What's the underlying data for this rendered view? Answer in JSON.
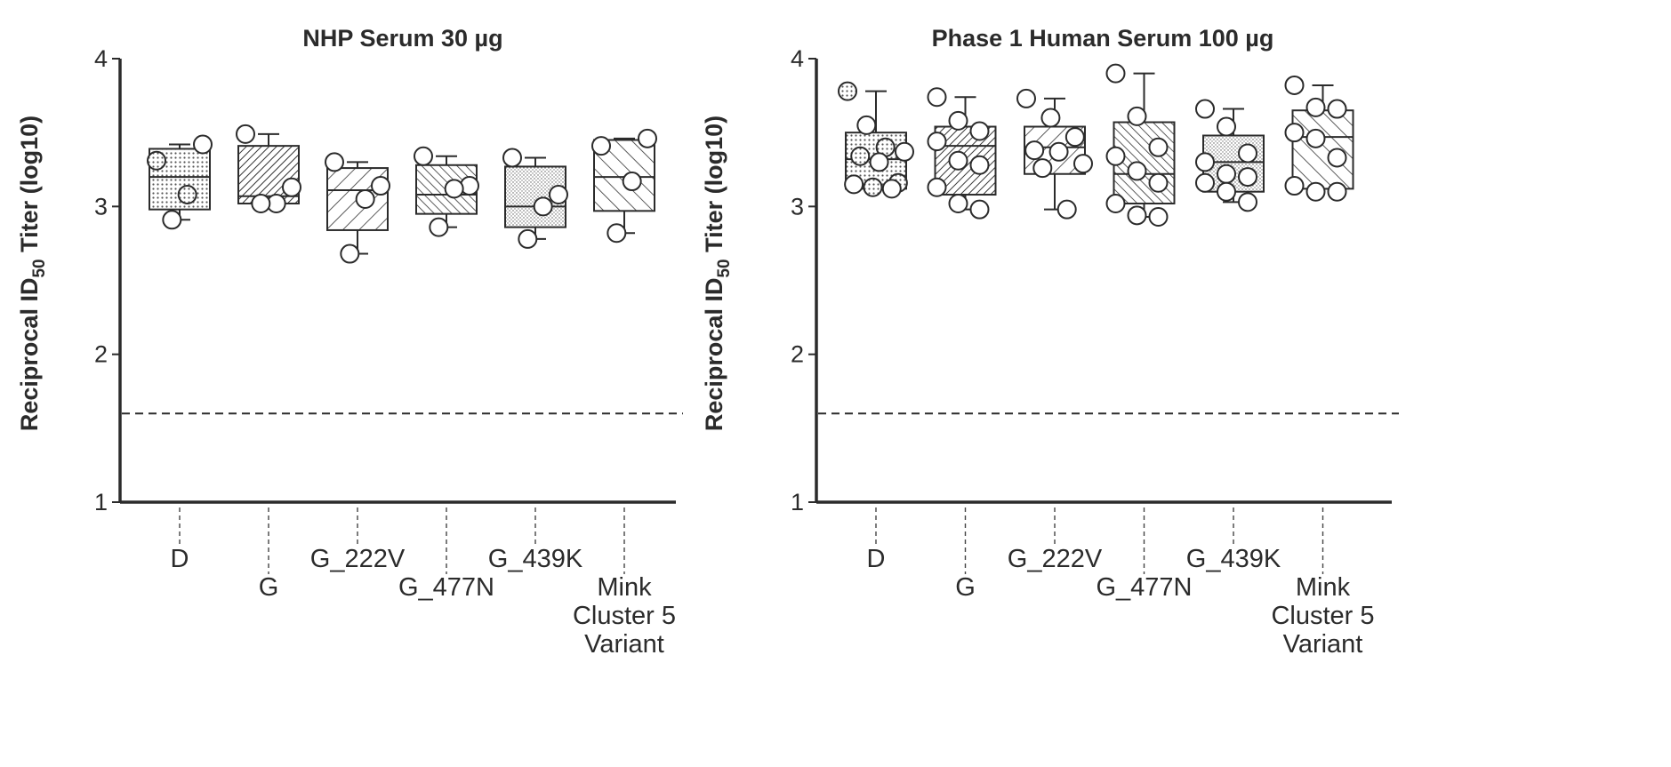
{
  "chart_data": [
    {
      "type": "box",
      "title": "NHP Serum 30 µg",
      "ylabel": "Reciprocal ID50 Titer (log10)",
      "ylim": [
        1,
        4
      ],
      "yticks": [
        1,
        2,
        3,
        4
      ],
      "limit_of_detection": 1.6,
      "categories": [
        "D",
        "G",
        "G_222V",
        "G_477N",
        "G_439K",
        "Mink Cluster 5 Variant"
      ],
      "boxes": [
        {
          "category": "D",
          "q1": 2.98,
          "median": 3.2,
          "q3": 3.39,
          "whisker_low": 2.91,
          "whisker_high": 3.42,
          "points": [
            3.31,
            3.42,
            3.08,
            2.91
          ],
          "fill": "dots"
        },
        {
          "category": "G",
          "q1": 3.02,
          "median": 3.07,
          "q3": 3.41,
          "whisker_low": 3.02,
          "whisker_high": 3.49,
          "points": [
            3.49,
            3.13,
            3.02,
            3.02
          ],
          "fill": "hatch-dense-back"
        },
        {
          "category": "G_222V",
          "q1": 2.84,
          "median": 3.11,
          "q3": 3.26,
          "whisker_low": 2.68,
          "whisker_high": 3.3,
          "points": [
            3.3,
            3.14,
            3.05,
            2.68
          ],
          "fill": "hatch-wide-back"
        },
        {
          "category": "G_477N",
          "q1": 2.95,
          "median": 3.08,
          "q3": 3.28,
          "whisker_low": 2.86,
          "whisker_high": 3.34,
          "points": [
            3.34,
            3.14,
            3.12,
            2.86
          ],
          "fill": "hatch-dense-fwd"
        },
        {
          "category": "G_439K",
          "q1": 2.86,
          "median": 3.0,
          "q3": 3.27,
          "whisker_low": 2.78,
          "whisker_high": 3.33,
          "points": [
            3.33,
            3.08,
            3.0,
            2.78
          ],
          "fill": "dots-fine"
        },
        {
          "category": "Mink Cluster 5 Variant",
          "q1": 2.97,
          "median": 3.2,
          "q3": 3.45,
          "whisker_low": 2.82,
          "whisker_high": 3.46,
          "points": [
            3.41,
            3.46,
            3.17,
            2.82
          ],
          "fill": "hatch-wide-fwd"
        }
      ]
    },
    {
      "type": "box",
      "title": "Phase 1 Human Serum 100 µg",
      "ylabel": "Reciprocal ID50 Titer (log10)",
      "ylim": [
        1,
        4
      ],
      "yticks": [
        1,
        2,
        3,
        4
      ],
      "limit_of_detection": 1.6,
      "categories": [
        "D",
        "G",
        "G_222V",
        "G_477N",
        "G_439K",
        "Mink Cluster 5 Variant"
      ],
      "boxes": [
        {
          "category": "D",
          "q1": 3.12,
          "median": 3.32,
          "q3": 3.5,
          "whisker_low": 3.12,
          "whisker_high": 3.78,
          "points": [
            3.78,
            3.55,
            3.4,
            3.37,
            3.34,
            3.3,
            3.16,
            3.15,
            3.13,
            3.12
          ],
          "fill": "dots"
        },
        {
          "category": "G",
          "q1": 3.08,
          "median": 3.41,
          "q3": 3.54,
          "whisker_low": 2.98,
          "whisker_high": 3.74,
          "points": [
            3.74,
            3.58,
            3.51,
            3.44,
            3.31,
            3.28,
            3.13,
            3.02,
            2.98
          ],
          "fill": "hatch-dense-back"
        },
        {
          "category": "G_222V",
          "q1": 3.22,
          "median": 3.4,
          "q3": 3.54,
          "whisker_low": 2.98,
          "whisker_high": 3.73,
          "points": [
            3.73,
            3.6,
            3.47,
            3.38,
            3.37,
            3.29,
            3.26,
            2.98
          ],
          "fill": "hatch-wide-back"
        },
        {
          "category": "G_477N",
          "q1": 3.02,
          "median": 3.22,
          "q3": 3.57,
          "whisker_low": 2.93,
          "whisker_high": 3.9,
          "points": [
            3.9,
            3.61,
            3.4,
            3.34,
            3.24,
            3.16,
            3.02,
            2.94,
            2.93
          ],
          "fill": "hatch-dense-fwd"
        },
        {
          "category": "G_439K",
          "q1": 3.1,
          "median": 3.3,
          "q3": 3.48,
          "whisker_low": 3.03,
          "whisker_high": 3.66,
          "points": [
            3.66,
            3.54,
            3.36,
            3.3,
            3.22,
            3.2,
            3.16,
            3.1,
            3.03
          ],
          "fill": "dots-fine"
        },
        {
          "category": "Mink Cluster 5 Variant",
          "q1": 3.12,
          "median": 3.47,
          "q3": 3.65,
          "whisker_low": 3.12,
          "whisker_high": 3.82,
          "points": [
            3.82,
            3.67,
            3.66,
            3.5,
            3.46,
            3.33,
            3.14,
            3.1,
            3.1
          ],
          "fill": "hatch-wide-fwd"
        }
      ]
    }
  ]
}
